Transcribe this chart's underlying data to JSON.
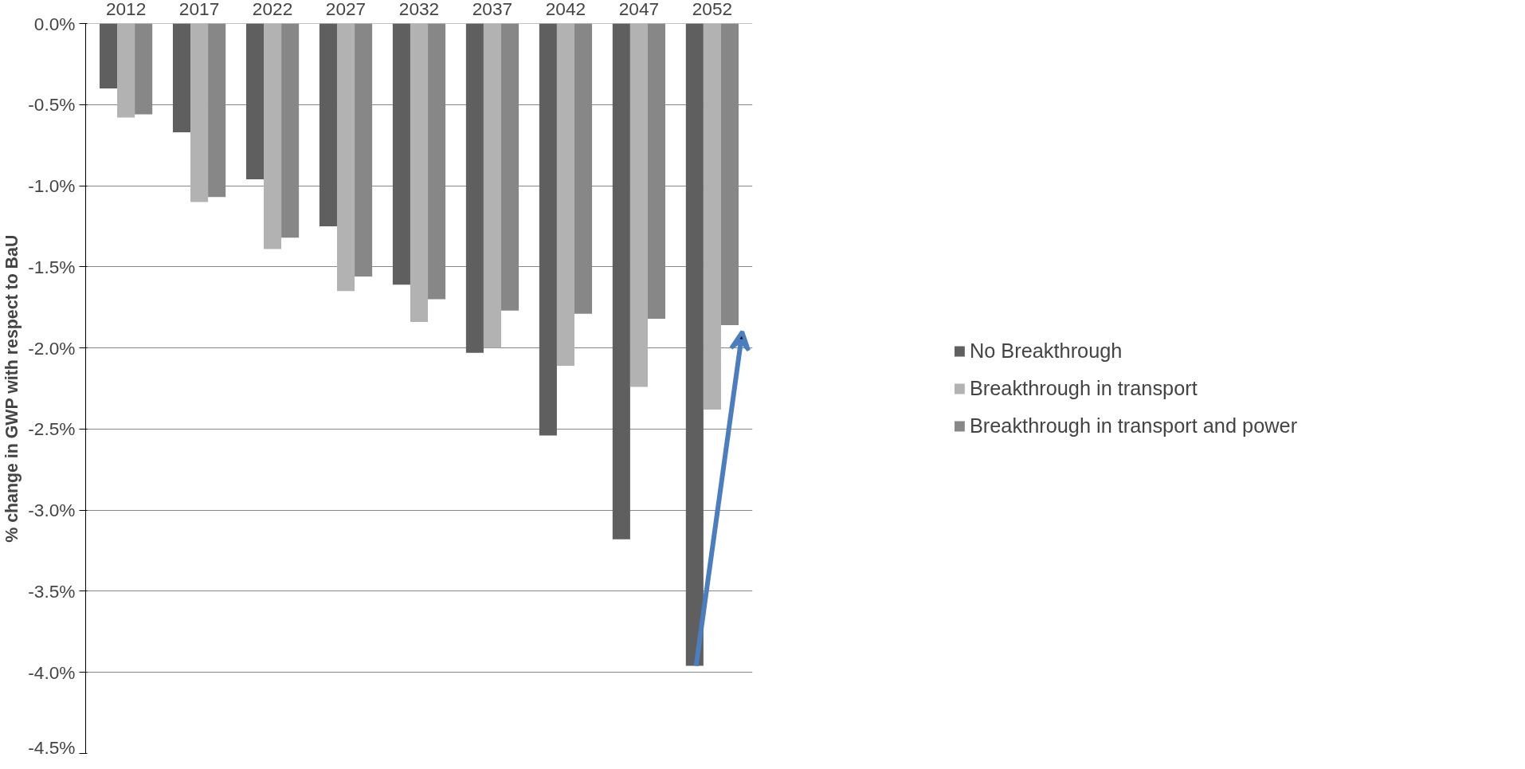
{
  "chart_data": {
    "type": "bar",
    "ylabel": "% change in GWP with respect to BaU",
    "categories": [
      "2012",
      "2017",
      "2022",
      "2027",
      "2032",
      "2037",
      "2042",
      "2047",
      "2052"
    ],
    "series": [
      {
        "name": "No Breakthrough",
        "color": "#5f5f5f",
        "values": [
          -0.4,
          -0.67,
          -0.96,
          -1.25,
          -1.61,
          -2.03,
          -2.54,
          -3.18,
          -3.96
        ]
      },
      {
        "name": "Breakthrough in transport",
        "color": "#b2b2b2",
        "values": [
          -0.58,
          -1.1,
          -1.39,
          -1.65,
          -1.84,
          -2.0,
          -2.11,
          -2.24,
          -2.38
        ]
      },
      {
        "name": "Breakthrough in transport and power",
        "color": "#878787",
        "values": [
          -0.56,
          -1.07,
          -1.32,
          -1.56,
          -1.7,
          -1.77,
          -1.79,
          -1.82,
          -1.86
        ]
      }
    ],
    "ylim": [
      -4.5,
      0
    ],
    "yticks": [
      {
        "value": 0,
        "label": "0.0%"
      },
      {
        "value": -0.5,
        "label": "-0.5%"
      },
      {
        "value": -1,
        "label": "-1.0%"
      },
      {
        "value": -1.5,
        "label": "-1.5%"
      },
      {
        "value": -2,
        "label": "-2.0%"
      },
      {
        "value": -2.5,
        "label": "-2.5%"
      },
      {
        "value": -3,
        "label": "-3.0%"
      },
      {
        "value": -3.5,
        "label": "-3.5%"
      },
      {
        "value": -4,
        "label": "-4.0%"
      },
      {
        "value": -4.5,
        "label": "-4.5%"
      }
    ],
    "grid": "y",
    "legend": "right"
  }
}
